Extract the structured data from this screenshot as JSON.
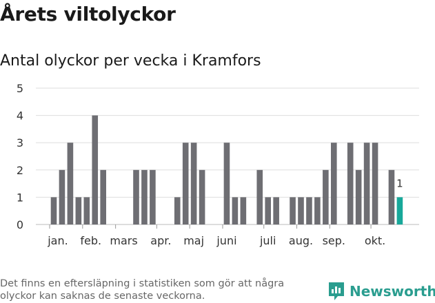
{
  "header": {
    "title": "Årets viltolyckor",
    "subtitle": "Antal olyckor per vecka i Kramfors"
  },
  "footer": {
    "note": "Det finns en eftersläpning i statistiken som gör att några olyckor kan saknas de senaste veckorna.",
    "brand": "Newsworthy"
  },
  "colors": {
    "bar": "#6e6e73",
    "highlight": "#18a89a",
    "grid": "#dddddd",
    "brand": "#2a9d8f"
  },
  "chart_data": {
    "type": "bar",
    "title": "Antal olyckor per vecka i Kramfors",
    "xlabel": "",
    "ylabel": "",
    "ylim": [
      0,
      5
    ],
    "yticks": [
      0,
      1,
      2,
      3,
      4,
      5
    ],
    "week_range": [
      1,
      43
    ],
    "series": [
      {
        "name": "Antal olyckor",
        "weeks": [
          1,
          2,
          3,
          4,
          5,
          6,
          7,
          11,
          12,
          13,
          16,
          17,
          18,
          19,
          22,
          23,
          24,
          26,
          27,
          28,
          30,
          31,
          32,
          33,
          34,
          35,
          37,
          38,
          39,
          40,
          42,
          43
        ],
        "values": [
          1,
          2,
          3,
          1,
          1,
          4,
          2,
          2,
          2,
          2,
          1,
          3,
          3,
          2,
          3,
          1,
          1,
          2,
          1,
          1,
          1,
          1,
          1,
          1,
          2,
          3,
          3,
          2,
          3,
          3,
          2,
          1
        ]
      }
    ],
    "highlight": {
      "week": 43,
      "label": "1"
    },
    "month_labels": [
      {
        "label": "jan.",
        "week": 1.5
      },
      {
        "label": "feb.",
        "week": 5.5
      },
      {
        "label": "mars",
        "week": 9.5
      },
      {
        "label": "apr.",
        "week": 14.0
      },
      {
        "label": "maj",
        "week": 18.0
      },
      {
        "label": "juni",
        "week": 22.0
      },
      {
        "label": "juli",
        "week": 27.0
      },
      {
        "label": "aug.",
        "week": 31.0
      },
      {
        "label": "sep.",
        "week": 35.0
      },
      {
        "label": "okt.",
        "week": 40.0
      }
    ],
    "month_ticks": [
      1,
      5,
      9,
      14,
      18,
      22,
      27,
      31,
      35,
      40
    ]
  }
}
